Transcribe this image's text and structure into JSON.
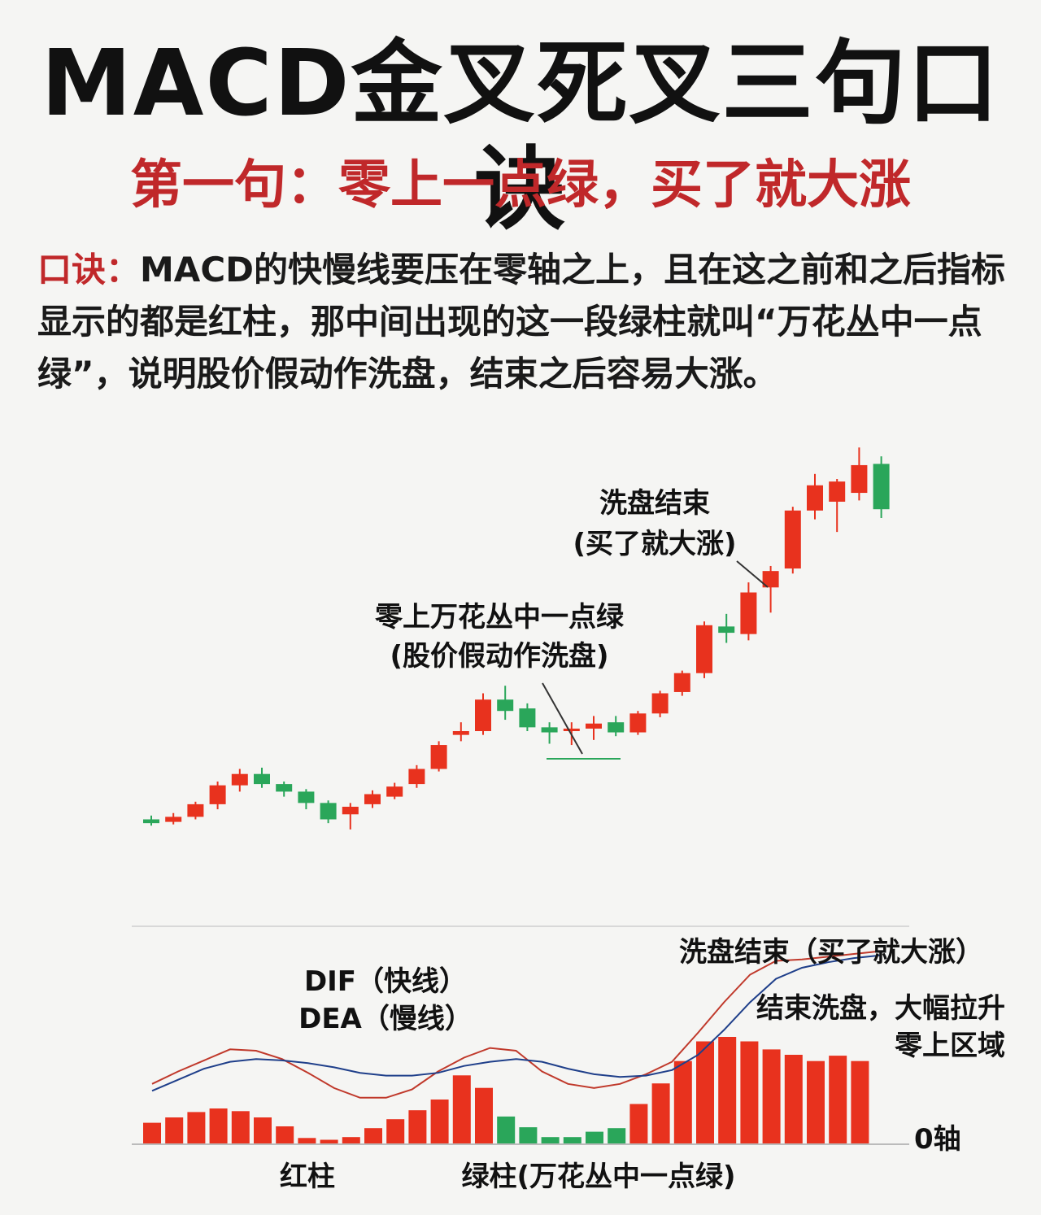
{
  "page": {
    "title": "MACD金叉死叉三句口诀",
    "subtitle": "第一句：零上一点绿，买了就大涨",
    "desc_lead": "口诀：",
    "desc_text": "MACD的快慢线要压在零轴之上，且在这之前和之后指标显示的都是红柱，那中间出现的这一段绿柱就叫“万花丛中一点绿”，说明股价假动作洗盘，结束之后容易大涨。"
  },
  "colors": {
    "up": "#e8321e",
    "down": "#2aa65a",
    "dif": "#c0392b",
    "dea": "#1f3f8a",
    "title_red": "#c0282a"
  },
  "chart_data": [
    {
      "type": "candlestick",
      "annotations": {
        "washout_end_line1": "洗盘结束",
        "washout_end_line2": "(买了就大涨)",
        "green_cluster_line1": "零上万花丛中一点绿",
        "green_cluster_line2": "(股价假动作洗盘)"
      },
      "candles": [
        {
          "o": 150,
          "c": 147,
          "h": 153,
          "l": 145
        },
        {
          "o": 148,
          "c": 152,
          "h": 155,
          "l": 146
        },
        {
          "o": 152,
          "c": 162,
          "h": 164,
          "l": 150
        },
        {
          "o": 162,
          "c": 177,
          "h": 180,
          "l": 158
        },
        {
          "o": 177,
          "c": 186,
          "h": 190,
          "l": 172
        },
        {
          "o": 186,
          "c": 178,
          "h": 191,
          "l": 175
        },
        {
          "o": 178,
          "c": 172,
          "h": 180,
          "l": 168
        },
        {
          "o": 172,
          "c": 163,
          "h": 174,
          "l": 158
        },
        {
          "o": 163,
          "c": 150,
          "h": 165,
          "l": 147
        },
        {
          "o": 154,
          "c": 160,
          "h": 163,
          "l": 142
        },
        {
          "o": 162,
          "c": 170,
          "h": 173,
          "l": 159
        },
        {
          "o": 168,
          "c": 176,
          "h": 179,
          "l": 166
        },
        {
          "o": 178,
          "c": 190,
          "h": 193,
          "l": 175
        },
        {
          "o": 190,
          "c": 209,
          "h": 212,
          "l": 188
        },
        {
          "o": 217,
          "c": 220,
          "h": 227,
          "l": 212
        },
        {
          "o": 220,
          "c": 245,
          "h": 250,
          "l": 217
        },
        {
          "o": 245,
          "c": 236,
          "h": 256,
          "l": 229
        },
        {
          "o": 238,
          "c": 223,
          "h": 242,
          "l": 220
        },
        {
          "o": 223,
          "c": 219,
          "h": 227,
          "l": 210
        },
        {
          "o": 220,
          "c": 222,
          "h": 227,
          "l": 209
        },
        {
          "o": 222,
          "c": 226,
          "h": 232,
          "l": 213
        },
        {
          "o": 227,
          "c": 219,
          "h": 232,
          "l": 216
        },
        {
          "o": 219,
          "c": 234,
          "h": 236,
          "l": 217
        },
        {
          "o": 234,
          "c": 250,
          "h": 252,
          "l": 231
        },
        {
          "o": 251,
          "c": 266,
          "h": 268,
          "l": 248
        },
        {
          "o": 266,
          "c": 304,
          "h": 307,
          "l": 262
        },
        {
          "o": 303,
          "c": 298,
          "h": 313,
          "l": 290
        },
        {
          "o": 297,
          "c": 330,
          "h": 338,
          "l": 292
        },
        {
          "o": 334,
          "c": 347,
          "h": 351,
          "l": 314
        },
        {
          "o": 349,
          "c": 395,
          "h": 398,
          "l": 345
        },
        {
          "o": 395,
          "c": 415,
          "h": 424,
          "l": 388
        },
        {
          "o": 402,
          "c": 418,
          "h": 420,
          "l": 378
        },
        {
          "o": 409,
          "c": 431,
          "h": 445,
          "l": 403
        },
        {
          "o": 432,
          "c": 396,
          "h": 438,
          "l": 389
        }
      ]
    },
    {
      "type": "bar+line",
      "series": [
        {
          "name": "DIF（快线）",
          "values": [
            0.16,
            0.25,
            0.33,
            0.41,
            0.4,
            0.34,
            0.24,
            0.13,
            0.06,
            0.06,
            0.12,
            0.25,
            0.35,
            0.42,
            0.4,
            0.25,
            0.16,
            0.13,
            0.16,
            0.23,
            0.32,
            0.53,
            0.75,
            0.95,
            1.05,
            1.06,
            1.08,
            1.1,
            1.12
          ]
        },
        {
          "name": "DEA（慢线）",
          "values": [
            0.11,
            0.19,
            0.27,
            0.32,
            0.34,
            0.33,
            0.31,
            0.28,
            0.24,
            0.22,
            0.22,
            0.24,
            0.29,
            0.32,
            0.34,
            0.32,
            0.27,
            0.23,
            0.21,
            0.22,
            0.26,
            0.37,
            0.55,
            0.75,
            0.92,
            1.0,
            1.04,
            1.07,
            1.09
          ]
        }
      ],
      "histogram": [
        {
          "v": 0.24,
          "c": "red"
        },
        {
          "v": 0.3,
          "c": "red"
        },
        {
          "v": 0.36,
          "c": "red"
        },
        {
          "v": 0.4,
          "c": "red"
        },
        {
          "v": 0.37,
          "c": "red"
        },
        {
          "v": 0.3,
          "c": "red"
        },
        {
          "v": 0.2,
          "c": "red"
        },
        {
          "v": 0.07,
          "c": "red"
        },
        {
          "v": 0.05,
          "c": "red"
        },
        {
          "v": 0.08,
          "c": "red"
        },
        {
          "v": 0.18,
          "c": "red"
        },
        {
          "v": 0.28,
          "c": "red"
        },
        {
          "v": 0.38,
          "c": "red"
        },
        {
          "v": 0.5,
          "c": "red"
        },
        {
          "v": 0.77,
          "c": "red"
        },
        {
          "v": 0.63,
          "c": "red"
        },
        {
          "v": 0.31,
          "c": "green"
        },
        {
          "v": 0.19,
          "c": "green"
        },
        {
          "v": 0.08,
          "c": "green"
        },
        {
          "v": 0.08,
          "c": "green"
        },
        {
          "v": 0.14,
          "c": "green"
        },
        {
          "v": 0.18,
          "c": "green"
        },
        {
          "v": 0.45,
          "c": "red"
        },
        {
          "v": 0.68,
          "c": "red"
        },
        {
          "v": 0.93,
          "c": "red"
        },
        {
          "v": 1.15,
          "c": "red"
        },
        {
          "v": 1.2,
          "c": "red"
        },
        {
          "v": 1.15,
          "c": "red"
        },
        {
          "v": 1.06,
          "c": "red"
        },
        {
          "v": 1.0,
          "c": "red"
        },
        {
          "v": 0.93,
          "c": "red"
        },
        {
          "v": 0.99,
          "c": "red"
        },
        {
          "v": 0.93,
          "c": "red"
        }
      ],
      "labels": {
        "dif": "DIF（快线）",
        "dea": "DEA（慢线）",
        "top_right": "洗盘结束（买了就大涨）",
        "right1": "结束洗盘，大幅拉升",
        "right2": "零上区域",
        "zero_axis": "0轴",
        "red_bars": "红柱",
        "green_bars": "绿柱(万花丛中一点绿)"
      }
    }
  ]
}
